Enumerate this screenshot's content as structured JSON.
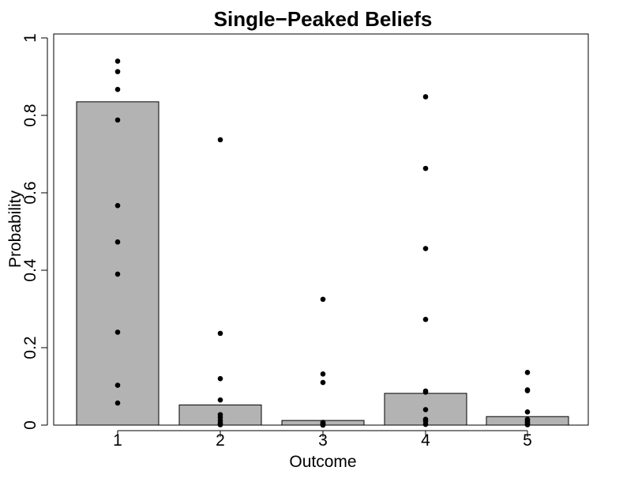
{
  "chart_data": {
    "type": "bar",
    "title": "Single−Peaked Beliefs",
    "xlabel": "Outcome",
    "ylabel": "Probability",
    "categories": [
      "1",
      "2",
      "3",
      "4",
      "5"
    ],
    "values": [
      0.835,
      0.052,
      0.012,
      0.082,
      0.022
    ],
    "ylim": [
      0,
      1
    ],
    "yticks": [
      "0",
      "0.2",
      "0.4",
      "0.6",
      "0.8",
      "1"
    ],
    "ytick_values": [
      0,
      0.2,
      0.4,
      0.6,
      0.8,
      1
    ],
    "grid": false,
    "bar_color": "#b3b3b3",
    "point_color": "#000000",
    "points": [
      [
        0.94,
        0.913,
        0.867,
        0.788,
        0.567,
        0.473,
        0.39,
        0.24,
        0.103,
        0.057
      ],
      [
        0.737,
        0.237,
        0.12,
        0.065,
        0.027,
        0.02,
        0.012,
        0.005,
        0.002,
        0.001
      ],
      [
        0.325,
        0.132,
        0.11,
        0.007,
        0.005,
        0.003,
        0.002,
        0.001,
        0.001,
        0.0
      ],
      [
        0.848,
        0.663,
        0.456,
        0.273,
        0.088,
        0.085,
        0.04,
        0.015,
        0.01,
        0.002
      ],
      [
        0.136,
        0.091,
        0.089,
        0.034,
        0.015,
        0.012,
        0.008,
        0.005,
        0.002,
        0.001
      ]
    ]
  }
}
